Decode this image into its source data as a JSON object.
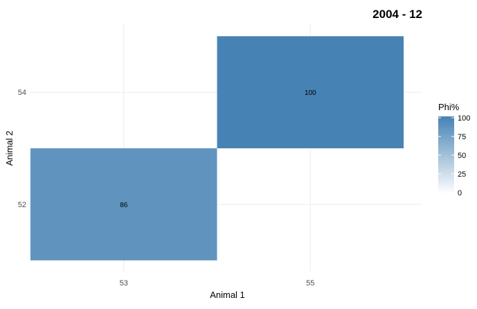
{
  "chart_data": {
    "type": "heatmap",
    "title": "2004 - 12",
    "xlabel": "Animal 1",
    "ylabel": "Animal 2",
    "x_ticks": [
      53,
      55
    ],
    "y_ticks": [
      52,
      54
    ],
    "xlim": [
      52,
      56.2
    ],
    "ylim": [
      50.8,
      55.3
    ],
    "cells": [
      {
        "x": 53,
        "y": 52,
        "value": 86,
        "label": "86"
      },
      {
        "x": 55,
        "y": 54,
        "value": 100,
        "label": "100"
      }
    ],
    "cell_width": 2,
    "cell_height": 2,
    "legend": {
      "title": "Phi%",
      "ticks": [
        0,
        25,
        50,
        75,
        100
      ],
      "range": [
        0,
        100
      ],
      "low_color": "#ffffff",
      "high_color": "#4682b4",
      "placement": "right"
    },
    "grid": true
  }
}
